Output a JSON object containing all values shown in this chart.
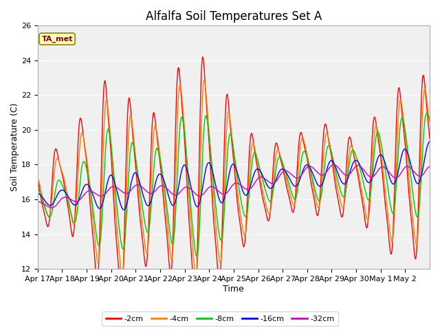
{
  "title": "Alfalfa Soil Temperatures Set A",
  "xlabel": "Time",
  "ylabel": "Soil Temperature (C)",
  "ylim": [
    12,
    26
  ],
  "yticks": [
    12,
    14,
    16,
    18,
    20,
    22,
    24,
    26
  ],
  "fig_bg_color": "#ffffff",
  "plot_bg_color": "#f0f0f0",
  "legend_label": "TA_met",
  "series_labels": [
    "-2cm",
    "-4cm",
    "-8cm",
    "-16cm",
    "-32cm"
  ],
  "series_colors": [
    "#ff0000",
    "#ff8000",
    "#00cc00",
    "#0000ff",
    "#cc00cc"
  ],
  "title_fontsize": 12,
  "axis_label_fontsize": 9,
  "tick_label_fontsize": 8,
  "linewidth": 1.0
}
